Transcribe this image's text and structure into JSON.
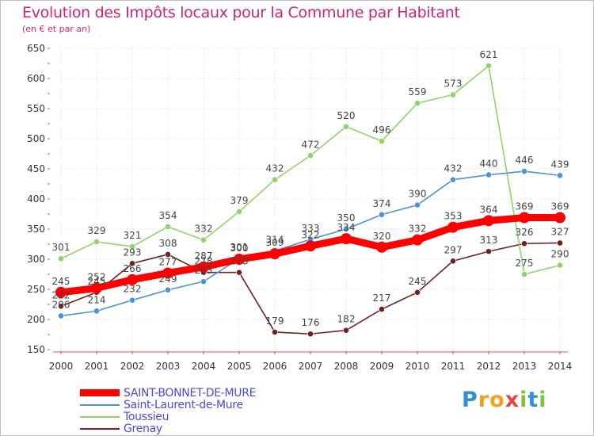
{
  "chart_data": {
    "type": "line",
    "title": "Evolution des Impôts locaux pour la Commune par Habitant",
    "subtitle": "(en € et par an)",
    "xlabel": "",
    "ylabel": "",
    "x": [
      "2000",
      "2001",
      "2002",
      "2003",
      "2004",
      "2005",
      "2006",
      "2007",
      "2008",
      "2009",
      "2010",
      "2011",
      "2012",
      "2013",
      "2014"
    ],
    "ylim": [
      150,
      650
    ],
    "yticks": [
      "150",
      "200",
      "250",
      "300",
      "350",
      "400",
      "450",
      "500",
      "550",
      "600",
      "650"
    ],
    "grid": true,
    "legend_position": "bottom-left",
    "series": [
      {
        "name": "SAINT-BONNET-DE-MURE",
        "color": "#ff0000",
        "values": [
          245,
          252,
          266,
          277,
          287,
          300,
          309,
          322,
          334,
          320,
          332,
          353,
          364,
          369,
          369
        ],
        "labels": [
          "245",
          "252",
          "266",
          "277",
          "287",
          "300",
          "309",
          "322",
          "334",
          "320",
          "332",
          "353",
          "364",
          "369",
          "369"
        ]
      },
      {
        "name": "Saint-Laurent-de-Mure",
        "color": "#4d93d1",
        "values": [
          206,
          214,
          232,
          249,
          263,
          301,
          314,
          333,
          350,
          374,
          390,
          432,
          440,
          446,
          439
        ],
        "labels": [
          "206",
          "214",
          "232",
          "249",
          "263",
          "301",
          "314",
          "333",
          "350",
          "374",
          "390",
          "432",
          "440",
          "446",
          "439"
        ]
      },
      {
        "name": "Toussieu",
        "color": "#8ed46a",
        "values": [
          301,
          329,
          321,
          354,
          332,
          379,
          432,
          472,
          520,
          496,
          559,
          573,
          621,
          275,
          290
        ],
        "labels": [
          "301",
          "329",
          "321",
          "354",
          "332",
          "379",
          "432",
          "472",
          "520",
          "496",
          "559",
          "573",
          "621",
          "275",
          "290"
        ]
      },
      {
        "name": "Grenay",
        "color": "#6e2222",
        "values": [
          222,
          245,
          293,
          308,
          278,
          278,
          179,
          176,
          182,
          217,
          245,
          297,
          313,
          326,
          327
        ],
        "labels": [
          "222",
          "245",
          "293",
          "308",
          "278",
          "278",
          "179",
          "176",
          "182",
          "217",
          "245",
          "297",
          "313",
          "326",
          "327"
        ]
      }
    ]
  },
  "brand": {
    "letters": [
      "P",
      "r",
      "o",
      "x",
      "i",
      "t",
      "i"
    ]
  }
}
